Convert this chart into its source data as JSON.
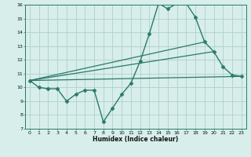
{
  "title": "",
  "xlabel": "Humidex (Indice chaleur)",
  "bg_color": "#d7eeeb",
  "grid_color": "#b0d0cc",
  "line_color": "#2a7a6a",
  "xlim": [
    -0.5,
    23.5
  ],
  "ylim": [
    7,
    16
  ],
  "xticks": [
    0,
    1,
    2,
    3,
    4,
    5,
    6,
    7,
    8,
    9,
    10,
    11,
    12,
    13,
    14,
    15,
    16,
    17,
    18,
    19,
    20,
    21,
    22,
    23
  ],
  "yticks": [
    7,
    8,
    9,
    10,
    11,
    12,
    13,
    14,
    15,
    16
  ],
  "series": [
    {
      "x": [
        0,
        1,
        2,
        3,
        4,
        5,
        6,
        7,
        8,
        9,
        10,
        11,
        12,
        13,
        14,
        15,
        16,
        17,
        18,
        19,
        20,
        21,
        22,
        23
      ],
      "y": [
        10.5,
        10.0,
        9.9,
        9.9,
        9.0,
        9.5,
        9.8,
        9.8,
        7.5,
        8.5,
        9.5,
        10.3,
        11.9,
        13.9,
        16.1,
        15.7,
        16.1,
        16.1,
        15.1,
        13.3,
        12.6,
        11.5,
        10.9,
        10.8
      ],
      "marker": "D",
      "markersize": 2.5,
      "linewidth": 1.0
    },
    {
      "x": [
        0,
        23
      ],
      "y": [
        10.5,
        10.8
      ],
      "marker": null,
      "linewidth": 0.9
    },
    {
      "x": [
        0,
        20
      ],
      "y": [
        10.5,
        12.6
      ],
      "marker": null,
      "linewidth": 0.9
    },
    {
      "x": [
        0,
        19
      ],
      "y": [
        10.5,
        13.3
      ],
      "marker": null,
      "linewidth": 0.9
    }
  ]
}
